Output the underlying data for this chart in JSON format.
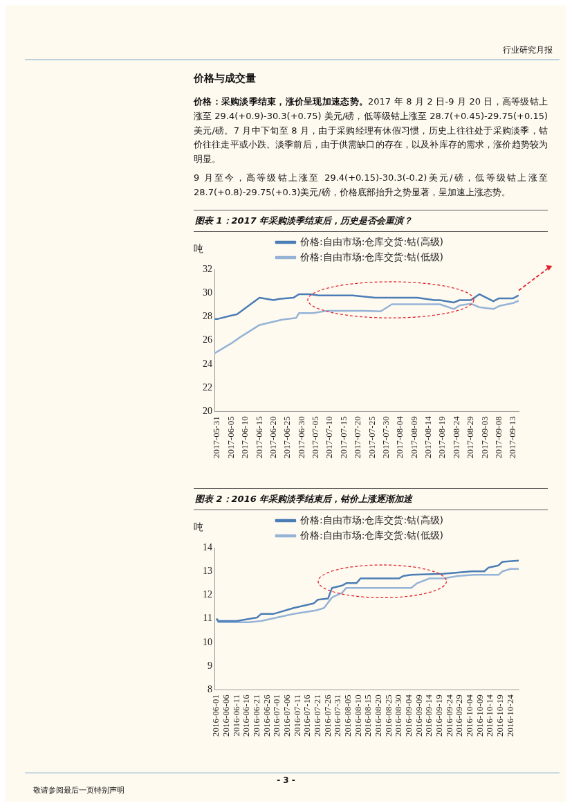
{
  "chart_data": [
    {
      "type": "line",
      "title": "图表 1：2017 年采购淡季结束后，历史是否会重演？",
      "ylabel": "吨",
      "annotations": [
        "行业研究月报",
        "价格与成交量",
        "价格：采购淡季结束，涨价呈现加速态势。",
        "2017 年 8 月 2 日-9 月 20 日，高等级钴上涨至 29.4(+0.9)-30.3(+0.75) 美元/磅，低等级钴上涨至 28.7(+0.45)-29.75(+0.15)美元/磅。7 月中下旬至 8 月，由于采购经理有休假习惯，历史上往往处于采购淡季，钴价往往走平或小跌。淡季前后，由于供需缺口的存在，以及补库存的需求，涨价趋势较为明显。",
        "9 月至今，高等级钴上涨至 29.4(+0.15)-30.3(-0.2)美元/磅，低等级钴上涨至 28.7(+0.8)-29.75(+0.3)美元/磅，价格底部抬升之势显著，呈加速上涨态势。"
      ],
      "series": [
        {
          "name": "价格:自由市场:仓库交货:钴(高级)",
          "color": "#4a7db5",
          "x": [
            "2017-05-30",
            "2017-05-31",
            "2017-06-05",
            "2017-06-07",
            "2017-06-15",
            "2017-06-20",
            "2017-06-22",
            "2017-06-27",
            "2017-06-29",
            "2017-07-03",
            "2017-07-06",
            "2017-07-18",
            "2017-07-26",
            "2017-08-10",
            "2017-08-16",
            "2017-08-18",
            "2017-08-23",
            "2017-08-25",
            "2017-08-29",
            "2017-09-01",
            "2017-09-06",
            "2017-09-08",
            "2017-09-13",
            "2017-09-15"
          ],
          "values": [
            27.8,
            27.8,
            28.1,
            28.2,
            29.6,
            29.4,
            29.5,
            29.6,
            29.9,
            29.9,
            29.8,
            29.8,
            29.6,
            29.6,
            29.4,
            29.4,
            29.2,
            29.4,
            29.4,
            29.9,
            29.3,
            29.55,
            29.55,
            29.8
          ]
        },
        {
          "name": "价格:自由市场:仓库交货:钴(低级)",
          "color": "#95b3d7",
          "x": [
            "2017-05-30",
            "2017-06-05",
            "2017-06-08",
            "2017-06-15",
            "2017-06-23",
            "2017-06-28",
            "2017-06-29",
            "2017-07-04",
            "2017-07-09",
            "2017-07-22",
            "2017-07-28",
            "2017-08-01",
            "2017-08-18",
            "2017-08-23",
            "2017-08-25",
            "2017-08-29",
            "2017-09-01",
            "2017-09-06",
            "2017-09-08",
            "2017-09-13",
            "2017-09-15"
          ],
          "values": [
            24.9,
            25.75,
            26.25,
            27.3,
            27.75,
            27.9,
            28.3,
            28.3,
            28.5,
            28.5,
            28.45,
            29.05,
            29.05,
            28.65,
            28.95,
            29.1,
            28.8,
            28.65,
            28.9,
            29.15,
            29.35
          ]
        }
      ],
      "xlim": [
        "2017-05-30",
        "2017-09-15"
      ],
      "xticks": [
        "2017-05-31",
        "2017-06-05",
        "2017-06-10",
        "2017-06-15",
        "2017-06-20",
        "2017-06-25",
        "2017-06-30",
        "2017-07-05",
        "2017-07-10",
        "2017-07-15",
        "2017-07-20",
        "2017-07-25",
        "2017-07-30",
        "2017-08-04",
        "2017-08-09",
        "2017-08-14",
        "2017-08-19",
        "2017-08-24",
        "2017-08-29",
        "2017-09-03",
        "2017-09-08",
        "2017-09-13"
      ],
      "ylim": [
        20,
        32
      ],
      "yticks": [
        20,
        22,
        24,
        26,
        28,
        30,
        32
      ],
      "grid": false,
      "legend": "top",
      "marker": "none",
      "line_style": "solid"
    },
    {
      "type": "line",
      "title": "图表 2：2016 年采购淡季结束后，钴价上涨逐渐加速",
      "ylabel": "吨",
      "annotations": [
        "- 3 -",
        "敬请参阅最后一页特别声明"
      ],
      "series": [
        {
          "name": "价格:自由市场:仓库交货:钴(高级)",
          "color": "#4a7db5",
          "x": [
            "2016-06-01",
            "2016-06-02",
            "2016-06-11",
            "2016-06-21",
            "2016-06-23",
            "2016-06-29",
            "2016-07-09",
            "2016-07-19",
            "2016-07-21",
            "2016-07-26",
            "2016-07-28",
            "2016-08-02",
            "2016-08-04",
            "2016-08-09",
            "2016-08-11",
            "2016-08-30",
            "2016-09-01",
            "2016-09-05",
            "2016-09-21",
            "2016-10-05",
            "2016-10-11",
            "2016-10-13",
            "2016-10-18",
            "2016-10-20",
            "2016-10-28"
          ],
          "values": [
            11.0,
            10.9,
            10.9,
            11.05,
            11.2,
            11.2,
            11.45,
            11.65,
            11.8,
            11.85,
            12.3,
            12.4,
            12.5,
            12.5,
            12.7,
            12.7,
            12.8,
            12.85,
            12.9,
            13.0,
            13.0,
            13.15,
            13.25,
            13.4,
            13.45
          ]
        },
        {
          "name": "价格:自由市场:仓库交货:钴(低级)",
          "color": "#95b3d7",
          "x": [
            "2016-06-01",
            "2016-06-02",
            "2016-06-17",
            "2016-06-23",
            "2016-07-09",
            "2016-07-20",
            "2016-07-24",
            "2016-07-28",
            "2016-08-02",
            "2016-08-04",
            "2016-09-05",
            "2016-09-08",
            "2016-09-14",
            "2016-09-21",
            "2016-09-28",
            "2016-10-06",
            "2016-10-18",
            "2016-10-20",
            "2016-10-24",
            "2016-10-28"
          ],
          "values": [
            11.0,
            10.85,
            10.85,
            10.9,
            11.2,
            11.35,
            11.45,
            11.9,
            12.1,
            12.3,
            12.3,
            12.5,
            12.7,
            12.7,
            12.8,
            12.85,
            12.85,
            13.0,
            13.1,
            13.1
          ]
        }
      ],
      "xlim": [
        "2016-05-31",
        "2016-10-28"
      ],
      "xticks": [
        "2016-06-01",
        "2016-06-06",
        "2016-06-11",
        "2016-06-16",
        "2016-06-21",
        "2016-06-26",
        "2016-07-01",
        "2016-07-06",
        "2016-07-11",
        "2016-07-16",
        "2016-07-21",
        "2016-07-26",
        "2016-07-31",
        "2016-08-05",
        "2016-08-10",
        "2016-08-15",
        "2016-08-20",
        "2016-08-25",
        "2016-08-30",
        "2016-09-04",
        "2016-09-09",
        "2016-09-14",
        "2016-09-19",
        "2016-09-24",
        "2016-09-29",
        "2016-10-04",
        "2016-10-09",
        "2016-10-14",
        "2016-10-19",
        "2016-10-24"
      ],
      "ylim": [
        8,
        14
      ],
      "yticks": [
        8,
        9,
        10,
        11,
        12,
        13,
        14
      ],
      "grid": false,
      "legend": "top",
      "marker": "none",
      "line_style": "solid"
    }
  ]
}
